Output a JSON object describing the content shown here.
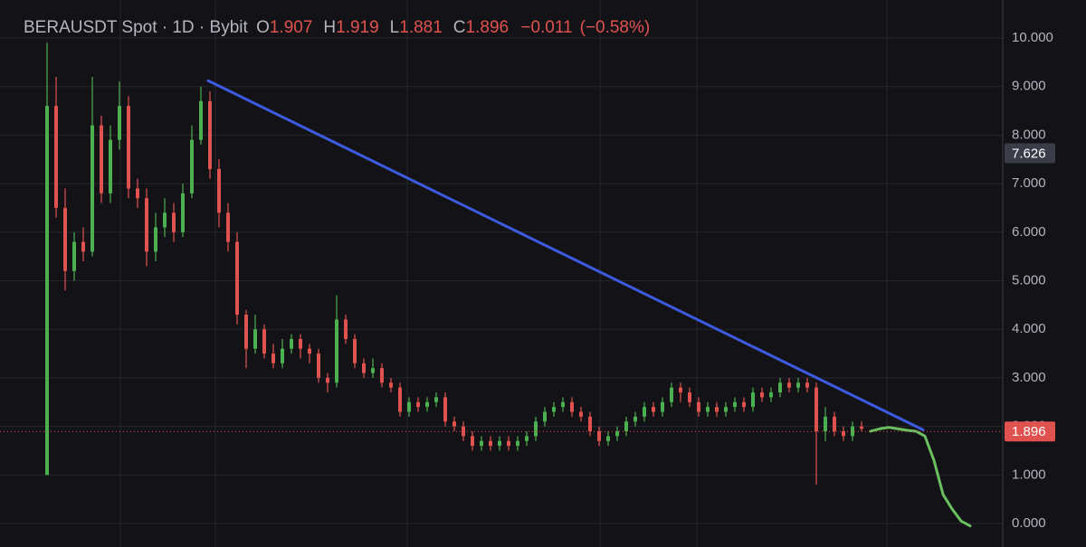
{
  "chart_data": {
    "type": "candlestick",
    "title": "BERAUSDT Spot · 1D · Bybit",
    "ohlc": [
      {
        "label": "O",
        "value": 1.907
      },
      {
        "label": "H",
        "value": 1.919
      },
      {
        "label": "L",
        "value": 1.881
      },
      {
        "label": "C",
        "value": 1.896
      }
    ],
    "change": {
      "value": -0.011,
      "label": "−0.011"
    },
    "change_pct": {
      "value": -0.58,
      "label": "(−0.58%)"
    },
    "up_color": "#4caf50",
    "down_color": "#e0524f",
    "open": [
      1.0,
      8.6,
      6.5,
      5.2,
      5.8,
      5.6,
      8.2,
      6.8,
      7.9,
      8.6,
      6.9,
      6.7,
      5.6,
      6.1,
      6.4,
      6.0,
      6.8,
      7.9,
      8.7,
      7.3,
      6.4,
      5.8,
      4.3,
      3.6,
      4.0,
      3.5,
      3.3,
      3.6,
      3.8,
      3.6,
      3.5,
      3.0,
      2.9,
      4.2,
      3.8,
      3.3,
      3.1,
      3.2,
      2.9,
      2.8,
      2.3,
      2.5,
      2.4,
      2.5,
      2.6,
      2.1,
      2.0,
      1.8,
      1.6,
      1.7,
      1.6,
      1.7,
      1.6,
      1.7,
      1.8,
      2.1,
      2.3,
      2.4,
      2.5,
      2.3,
      2.2,
      1.9,
      1.7,
      1.8,
      1.9,
      2.1,
      2.2,
      2.4,
      2.3,
      2.5,
      2.8,
      2.7,
      2.5,
      2.3,
      2.4,
      2.3,
      2.4,
      2.5,
      2.4,
      2.7,
      2.6,
      2.7,
      2.9,
      2.8,
      2.9,
      2.8,
      1.9,
      2.2,
      1.9,
      1.8,
      2.0,
      1.907
    ],
    "high": [
      9.9,
      9.2,
      6.9,
      6.0,
      6.1,
      9.2,
      8.4,
      8.2,
      9.1,
      8.8,
      7.1,
      6.9,
      6.4,
      6.7,
      6.6,
      7.0,
      8.2,
      9.0,
      8.9,
      7.5,
      6.6,
      6.0,
      4.4,
      4.3,
      4.1,
      3.7,
      3.8,
      3.9,
      3.9,
      3.7,
      3.6,
      3.1,
      4.7,
      4.3,
      3.9,
      3.4,
      3.4,
      3.3,
      3.0,
      2.9,
      2.6,
      2.6,
      2.6,
      2.7,
      2.7,
      2.2,
      2.1,
      1.9,
      1.8,
      1.8,
      1.8,
      1.8,
      1.8,
      1.9,
      2.2,
      2.4,
      2.5,
      2.6,
      2.6,
      2.4,
      2.3,
      2.0,
      1.9,
      2.0,
      2.2,
      2.3,
      2.5,
      2.5,
      2.6,
      2.9,
      2.9,
      2.8,
      2.6,
      2.5,
      2.5,
      2.5,
      2.6,
      2.6,
      2.8,
      2.8,
      2.8,
      3.0,
      3.0,
      3.0,
      3.0,
      2.9,
      2.4,
      2.3,
      2.0,
      2.1,
      2.1,
      1.919
    ],
    "low": [
      1.0,
      6.3,
      4.8,
      5.0,
      5.4,
      5.5,
      6.6,
      6.6,
      7.7,
      6.7,
      6.5,
      5.3,
      5.4,
      5.9,
      5.8,
      5.9,
      6.7,
      7.8,
      7.1,
      6.1,
      5.6,
      4.1,
      3.2,
      3.5,
      3.4,
      3.2,
      3.2,
      3.5,
      3.4,
      3.3,
      2.9,
      2.7,
      2.8,
      3.7,
      3.2,
      3.0,
      3.0,
      2.8,
      2.7,
      2.2,
      2.2,
      2.3,
      2.3,
      2.4,
      2.0,
      1.9,
      1.7,
      1.5,
      1.5,
      1.5,
      1.5,
      1.5,
      1.5,
      1.6,
      1.7,
      2.0,
      2.2,
      2.3,
      2.2,
      2.1,
      1.8,
      1.6,
      1.6,
      1.7,
      1.8,
      2.0,
      2.1,
      2.2,
      2.2,
      2.4,
      2.5,
      2.4,
      2.2,
      2.2,
      2.2,
      2.2,
      2.3,
      2.3,
      2.3,
      2.5,
      2.5,
      2.6,
      2.7,
      2.7,
      2.7,
      0.8,
      1.7,
      1.8,
      1.7,
      1.7,
      1.9,
      1.881
    ],
    "close": [
      8.6,
      6.5,
      5.2,
      5.8,
      5.6,
      8.2,
      6.8,
      7.9,
      8.6,
      6.9,
      6.7,
      5.6,
      6.1,
      6.4,
      6.0,
      6.8,
      7.9,
      8.7,
      7.3,
      6.4,
      5.8,
      4.3,
      3.6,
      4.0,
      3.5,
      3.3,
      3.6,
      3.8,
      3.6,
      3.5,
      3.0,
      2.9,
      4.2,
      3.8,
      3.3,
      3.1,
      3.2,
      2.9,
      2.8,
      2.3,
      2.5,
      2.4,
      2.5,
      2.6,
      2.1,
      2.0,
      1.8,
      1.6,
      1.7,
      1.6,
      1.7,
      1.6,
      1.7,
      1.8,
      2.1,
      2.3,
      2.4,
      2.5,
      2.3,
      2.2,
      1.9,
      1.7,
      1.8,
      1.9,
      2.1,
      2.2,
      2.4,
      2.3,
      2.5,
      2.8,
      2.7,
      2.5,
      2.3,
      2.4,
      2.3,
      2.4,
      2.5,
      2.4,
      2.7,
      2.6,
      2.7,
      2.9,
      2.8,
      2.9,
      2.8,
      1.9,
      2.2,
      1.9,
      1.8,
      2.0,
      1.95,
      1.896
    ],
    "trendline": {
      "color": "#3d5be0",
      "x": [
        17.8,
        96.8
      ],
      "values": [
        9.12,
        1.93
      ]
    },
    "projection": {
      "color": "#6abf5e",
      "x": [
        91,
        92,
        93,
        94,
        95,
        96,
        97,
        98,
        99,
        100,
        101,
        102
      ],
      "values": [
        1.9,
        1.95,
        1.98,
        1.95,
        1.92,
        1.9,
        1.8,
        1.3,
        0.6,
        0.3,
        0.05,
        -0.05
      ]
    },
    "ylim": [
      -0.484,
      10.782
    ],
    "yticks": [
      {
        "value": 0,
        "label": "0.000"
      },
      {
        "value": 1,
        "label": "1.000"
      },
      {
        "value": 2,
        "label": "2.000"
      },
      {
        "value": 3,
        "label": "3.000"
      },
      {
        "value": 4,
        "label": "4.000"
      },
      {
        "value": 5,
        "label": "5.000"
      },
      {
        "value": 6,
        "label": "6.000"
      },
      {
        "value": 7,
        "label": "7.000"
      },
      {
        "value": 8,
        "label": "8.000"
      },
      {
        "value": 9,
        "label": "9.000"
      },
      {
        "value": 10,
        "label": "10.000"
      }
    ],
    "crosshair_price": 7.626,
    "last_price": 1.896,
    "grid": true
  }
}
